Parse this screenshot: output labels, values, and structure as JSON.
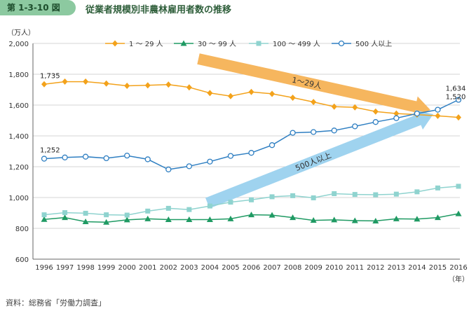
{
  "figure": {
    "number": "第 1-3-10 図",
    "title": "従業者規模別非農林雇用者数の推移",
    "source": "資料：総務省「労働力調査」"
  },
  "chart_data": {
    "type": "line",
    "title": "従業者規模別非農林雇用者数の推移",
    "ylabel": "（万人）",
    "xlabel": "（年）",
    "ylim": [
      600,
      2000
    ],
    "yticks": [
      600,
      800,
      1000,
      1200,
      1400,
      1600,
      1800,
      2000
    ],
    "ytick_labels": [
      "600",
      "800",
      "1,000",
      "1,200",
      "1,400",
      "1,600",
      "1,800",
      "2,000"
    ],
    "x": [
      "1996",
      "1997",
      "1998",
      "1999",
      "2000",
      "2001",
      "2002",
      "2003",
      "2004",
      "2005",
      "2006",
      "2007",
      "2008",
      "2009",
      "2010",
      "2011",
      "2012",
      "2013",
      "2014",
      "2015",
      "2016"
    ],
    "grid": true,
    "legend_position": "top",
    "series": [
      {
        "name": "1 ～ 29 人",
        "color": "#f3a21b",
        "marker": "diamond",
        "values": [
          1735,
          1752,
          1752,
          1740,
          1725,
          1728,
          1733,
          1715,
          1678,
          1658,
          1685,
          1673,
          1648,
          1620,
          1590,
          1585,
          1558,
          1545,
          1538,
          1530,
          1520
        ]
      },
      {
        "name": "30 ～ 99 人",
        "color": "#1f9a63",
        "marker": "triangle",
        "values": [
          858,
          870,
          843,
          840,
          855,
          862,
          857,
          857,
          857,
          862,
          888,
          886,
          870,
          852,
          855,
          850,
          848,
          862,
          860,
          870,
          895
        ]
      },
      {
        "name": "100 ～ 499 人",
        "color": "#8fd3cf",
        "marker": "square",
        "values": [
          888,
          902,
          898,
          888,
          886,
          912,
          930,
          922,
          945,
          970,
          985,
          1005,
          1012,
          998,
          1025,
          1020,
          1018,
          1022,
          1037,
          1062,
          1073
        ]
      },
      {
        "name": "500 人以上",
        "color": "#2f7fc2",
        "marker": "circle",
        "values": [
          1252,
          1260,
          1265,
          1255,
          1272,
          1248,
          1182,
          1203,
          1233,
          1270,
          1290,
          1340,
          1420,
          1425,
          1435,
          1462,
          1490,
          1515,
          1545,
          1570,
          1634
        ]
      }
    ],
    "annotations": [
      {
        "series": 0,
        "index": 0,
        "text": "1,735"
      },
      {
        "series": 0,
        "index": 20,
        "text": "1,520"
      },
      {
        "series": 3,
        "index": 0,
        "text": "1,252"
      },
      {
        "series": 3,
        "index": 20,
        "text": "1,634"
      }
    ],
    "trend_arrows": [
      {
        "label": "1～29人",
        "color": "#f6b65e"
      },
      {
        "label": "500人以上",
        "color": "#9fd3ef"
      }
    ]
  }
}
